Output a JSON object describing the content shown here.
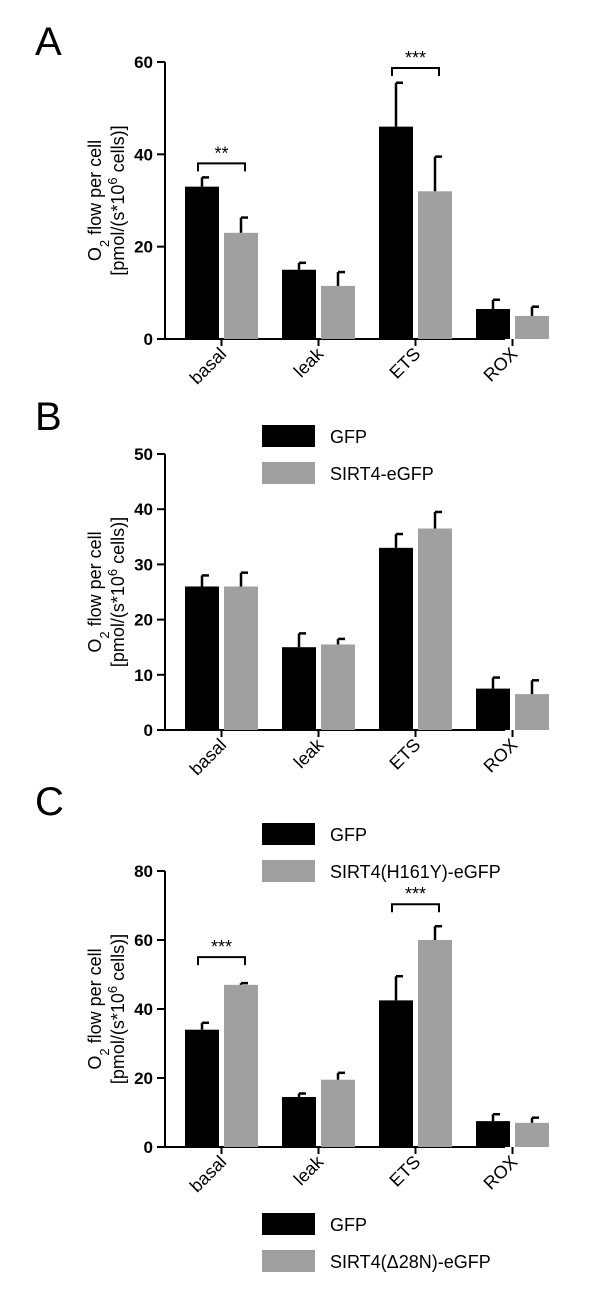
{
  "chart_data": [
    {
      "panel": "A",
      "type": "bar",
      "categories": [
        "basal",
        "leak",
        "ETS",
        "ROX"
      ],
      "series": [
        {
          "name": "GFP",
          "color": "#000000",
          "values": [
            33,
            15,
            46,
            6.5
          ],
          "errors": [
            2,
            1.5,
            9.5,
            2
          ]
        },
        {
          "name": "SIRT4-eGFP",
          "color": "#a0a0a0",
          "values": [
            23,
            11.5,
            32,
            5
          ],
          "errors": [
            3.3,
            3,
            7.5,
            2
          ]
        }
      ],
      "ylabel_line1": "O",
      "ylabel_sub": "2",
      "ylabel_rest": " flow per cell",
      "ylabel_line2_pre": "[pmol/(s*10",
      "ylabel_sup": "6",
      "ylabel_line2_post": " cells)]",
      "ylim": [
        0,
        60
      ],
      "yticks": [
        "0",
        "20",
        "40",
        "60"
      ],
      "significance": [
        {
          "category_index": 0,
          "label": "**"
        },
        {
          "category_index": 2,
          "label": "***"
        }
      ]
    },
    {
      "panel": "B",
      "type": "bar",
      "categories": [
        "basal",
        "leak",
        "ETS",
        "ROX"
      ],
      "series": [
        {
          "name": "GFP",
          "color": "#000000",
          "values": [
            26,
            15,
            33,
            7.5
          ],
          "errors": [
            2,
            2.5,
            2.5,
            2
          ]
        },
        {
          "name": "SIRT4(H161Y)-eGFP",
          "color": "#a0a0a0",
          "values": [
            26,
            15.5,
            36.5,
            6.5
          ],
          "errors": [
            2.5,
            1,
            3,
            2.5
          ]
        }
      ],
      "ylabel_line1": "O",
      "ylabel_sub": "2",
      "ylabel_rest": " flow per cell",
      "ylabel_line2_pre": "[pmol/(s*10",
      "ylabel_sup": "6",
      "ylabel_line2_post": " cells)]",
      "ylim": [
        0,
        50
      ],
      "yticks": [
        "0",
        "10",
        "20",
        "30",
        "40",
        "50"
      ],
      "significance": []
    },
    {
      "panel": "C",
      "type": "bar",
      "categories": [
        "basal",
        "leak",
        "ETS",
        "ROX"
      ],
      "series": [
        {
          "name": "GFP",
          "color": "#000000",
          "values": [
            34,
            14.5,
            42.5,
            7.5
          ],
          "errors": [
            2,
            1,
            7,
            2
          ]
        },
        {
          "name": "SIRT4(Δ28N)-eGFP",
          "color": "#a0a0a0",
          "values": [
            47,
            19.5,
            60,
            7
          ],
          "errors": [
            0.5,
            2,
            4,
            1.5
          ]
        }
      ],
      "ylabel_line1": "O",
      "ylabel_sub": "2",
      "ylabel_rest": " flow per cell",
      "ylabel_line2_pre": "[pmol/(s*10",
      "ylabel_sup": "6",
      "ylabel_line2_post": " cells)]",
      "ylim": [
        0,
        80
      ],
      "yticks": [
        "0",
        "20",
        "40",
        "60",
        "80"
      ],
      "significance": [
        {
          "category_index": 0,
          "label": "***"
        },
        {
          "category_index": 2,
          "label": "***"
        }
      ]
    }
  ]
}
